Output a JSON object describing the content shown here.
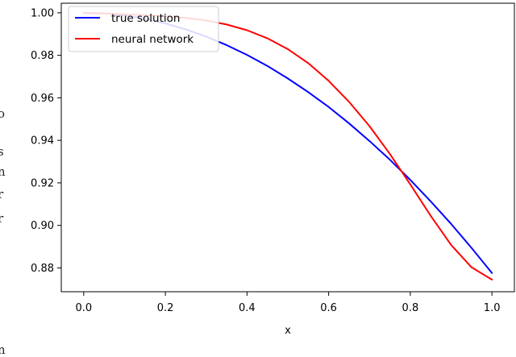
{
  "chart_data": {
    "type": "line",
    "title": "",
    "xlabel": "x",
    "ylabel": "",
    "xlim": [
      -0.055,
      1.055
    ],
    "ylim": [
      0.8688,
      1.0045
    ],
    "grid": false,
    "legend_position": "top-left",
    "x_ticks": [
      0.0,
      0.2,
      0.4,
      0.6,
      0.8,
      1.0
    ],
    "x_tick_labels": [
      "0.0",
      "0.2",
      "0.4",
      "0.6",
      "0.8",
      "1.0"
    ],
    "y_ticks": [
      0.88,
      0.9,
      0.92,
      0.94,
      0.96,
      0.98,
      1.0
    ],
    "y_tick_labels": [
      "0.88",
      "0.90",
      "0.92",
      "0.94",
      "0.96",
      "0.98",
      "1.00"
    ],
    "series": [
      {
        "name": "true solution",
        "color": "#0000ff",
        "x": [
          0.0,
          0.05,
          0.1,
          0.15,
          0.2,
          0.25,
          0.3,
          0.35,
          0.4,
          0.45,
          0.5,
          0.55,
          0.6,
          0.65,
          0.7,
          0.75,
          0.8,
          0.85,
          0.9,
          0.95,
          1.0
        ],
        "y": [
          1.0,
          0.9997,
          0.9988,
          0.9972,
          0.995,
          0.9922,
          0.9888,
          0.9848,
          0.9802,
          0.975,
          0.9691,
          0.9627,
          0.9557,
          0.948,
          0.9397,
          0.9309,
          0.9214,
          0.9113,
          0.9007,
          0.8894,
          0.8776
        ]
      },
      {
        "name": "neural network",
        "color": "#ff0000",
        "x": [
          0.0,
          0.05,
          0.1,
          0.15,
          0.2,
          0.25,
          0.3,
          0.35,
          0.4,
          0.45,
          0.5,
          0.55,
          0.6,
          0.65,
          0.7,
          0.75,
          0.8,
          0.85,
          0.9,
          0.95,
          1.0
        ],
        "y": [
          0.9998,
          0.9996,
          0.9993,
          0.9989,
          0.9984,
          0.9976,
          0.9964,
          0.9945,
          0.9918,
          0.988,
          0.9829,
          0.9763,
          0.968,
          0.9581,
          0.9467,
          0.9336,
          0.9193,
          0.9045,
          0.8908,
          0.8803,
          0.8745
        ]
      }
    ]
  },
  "margin_glyphs": [
    "o",
    "s",
    "n",
    "r",
    "r",
    "n"
  ]
}
